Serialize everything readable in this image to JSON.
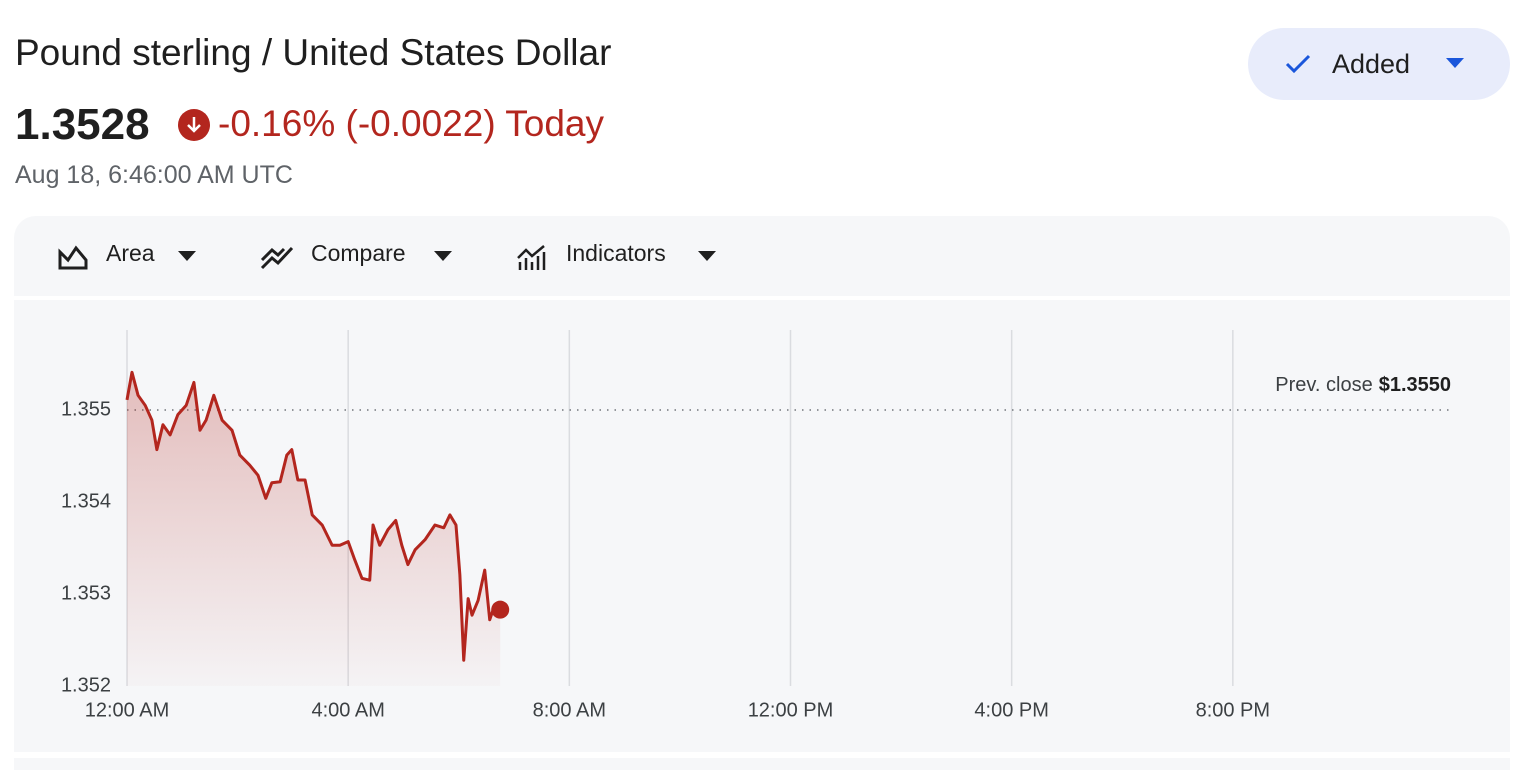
{
  "header": {
    "title": "Pound sterling / United States Dollar",
    "price": "1.3528",
    "change": "-0.16% (-0.0022) Today",
    "timestamp": "Aug 18, 6:46:00 AM UTC",
    "button": "Added"
  },
  "toolbar": {
    "items": [
      "Area",
      "Compare",
      "Indicators"
    ]
  },
  "chart_data": {
    "type": "area",
    "color": "#b3261e",
    "x": [
      0,
      0.09,
      0.2,
      0.33,
      0.45,
      0.54,
      0.65,
      0.78,
      0.92,
      1.07,
      1.21,
      1.32,
      1.43,
      1.57,
      1.72,
      1.9,
      2.04,
      2.22,
      2.37,
      2.51,
      2.62,
      2.77,
      2.89,
      2.98,
      3.09,
      3.22,
      3.35,
      3.53,
      3.71,
      3.85,
      4.0,
      4.12,
      4.25,
      4.39,
      4.45,
      4.57,
      4.72,
      4.86,
      4.97,
      5.08,
      5.21,
      5.39,
      5.57,
      5.73,
      5.84,
      5.95,
      6.02,
      6.09,
      6.17,
      6.24,
      6.35,
      6.47,
      6.56,
      6.65,
      6.75
    ],
    "values": [
      1.35511,
      1.35541,
      1.35516,
      1.35505,
      1.35489,
      1.35457,
      1.35484,
      1.35473,
      1.35495,
      1.35505,
      1.3553,
      1.35478,
      1.35489,
      1.35516,
      1.35489,
      1.35478,
      1.35451,
      1.3544,
      1.35429,
      1.35404,
      1.35421,
      1.35422,
      1.35451,
      1.35457,
      1.35424,
      1.35424,
      1.35386,
      1.35375,
      1.35353,
      1.35353,
      1.35357,
      1.35337,
      1.35317,
      1.35315,
      1.35375,
      1.35353,
      1.3537,
      1.3538,
      1.35353,
      1.35332,
      1.35348,
      1.35359,
      1.35375,
      1.35372,
      1.35386,
      1.35375,
      1.35321,
      1.35228,
      1.35295,
      1.35277,
      1.35293,
      1.35326,
      1.35272,
      1.35288,
      1.35283
    ],
    "xlim": [
      0,
      24
    ],
    "xticks": [
      {
        "value": 0,
        "label": "12:00 AM"
      },
      {
        "value": 4,
        "label": "4:00 AM"
      },
      {
        "value": 8,
        "label": "8:00 AM"
      },
      {
        "value": 12,
        "label": "12:00 PM"
      },
      {
        "value": 16,
        "label": "4:00 PM"
      },
      {
        "value": 20,
        "label": "8:00 PM"
      }
    ],
    "ylim": [
      1.352,
      1.35587
    ],
    "yticks": [
      1.352,
      1.353,
      1.354,
      1.355
    ],
    "reference_line": {
      "label": "Prev. close",
      "value": 1.355,
      "value_label": "$1.3550"
    },
    "grid": true
  }
}
